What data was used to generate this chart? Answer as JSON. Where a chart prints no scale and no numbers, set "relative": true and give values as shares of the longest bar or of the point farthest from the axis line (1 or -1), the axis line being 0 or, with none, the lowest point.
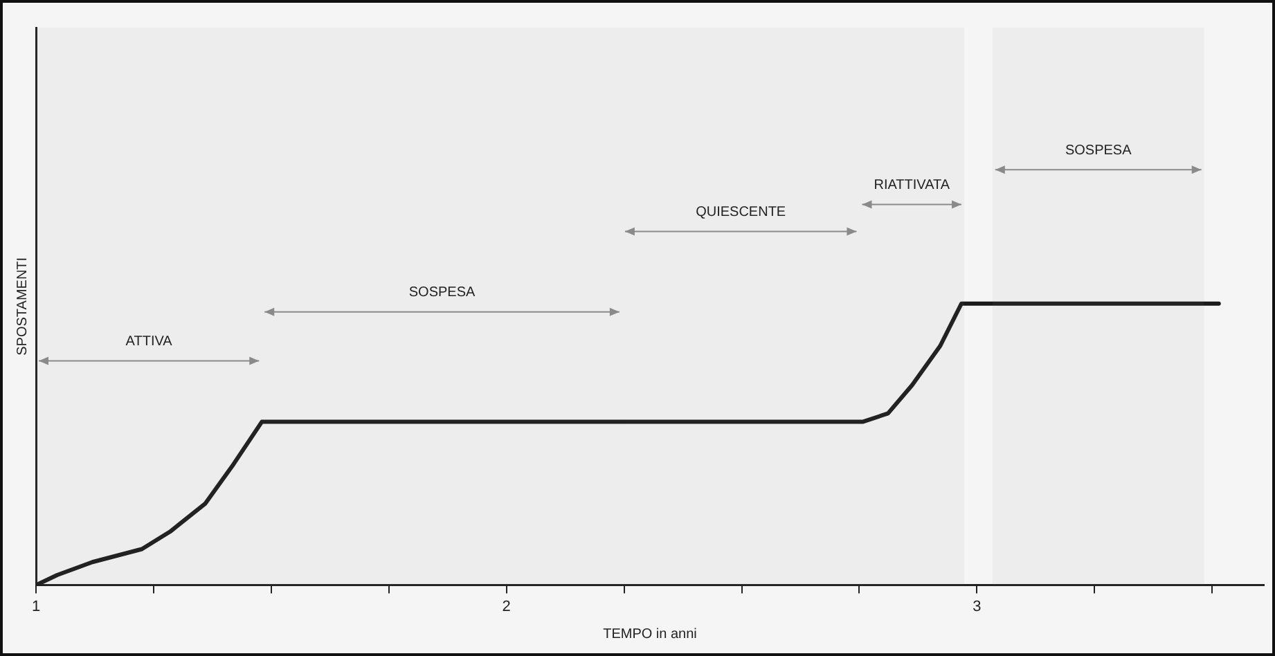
{
  "chart_data": {
    "type": "line",
    "xlabel": "TEMPO in anni",
    "ylabel": "SPOSTAMENTI",
    "relative": true,
    "grid": false,
    "marker": "none",
    "line_style": "solid",
    "x": [
      1,
      1.045,
      1.12,
      1.225,
      1.285,
      1.36,
      1.42,
      1.48,
      2.757,
      2.811,
      2.862,
      2.922,
      2.967,
      3.514
    ],
    "xlim": [
      1,
      3.61
    ],
    "xticks": [
      1,
      {
        "value": 1.25,
        "label": null
      },
      {
        "value": 1.5,
        "label": null
      },
      {
        "value": 1.75,
        "label": null
      },
      2,
      {
        "value": 2.25,
        "label": null
      },
      {
        "value": 2.5,
        "label": null
      },
      {
        "value": 2.75,
        "label": null
      },
      3,
      {
        "value": 3.25,
        "label": null
      },
      {
        "value": 3.5,
        "label": null
      }
    ],
    "series": [
      {
        "color": "#1a1a1a",
        "values": [
          0,
          0.036,
          0.082,
          0.128,
          0.19,
          0.29,
          0.43,
          0.58,
          0.58,
          0.61,
          0.71,
          0.85,
          1,
          1
        ]
      }
    ],
    "bands": [
      {
        "axis": "x",
        "from": 1,
        "to": 1.48,
        "label": "ATTIVA",
        "color": "#8a8a8a"
      },
      {
        "axis": "x",
        "from": 1.48,
        "to": 2.246,
        "label": "SOSPESA",
        "color": "#8a8a8a"
      },
      {
        "axis": "x",
        "from": 2.246,
        "to": 2.75,
        "label": "QUIESCENTE",
        "color": "#8a8a8a"
      },
      {
        "axis": "x",
        "from": 2.75,
        "to": 2.973,
        "label": "RIATTIVATA",
        "color": "#8a8a8a"
      },
      {
        "axis": "x",
        "from": 3.033,
        "to": 3.483,
        "label": "SOSPESA",
        "color": "#8a8a8a"
      }
    ]
  }
}
